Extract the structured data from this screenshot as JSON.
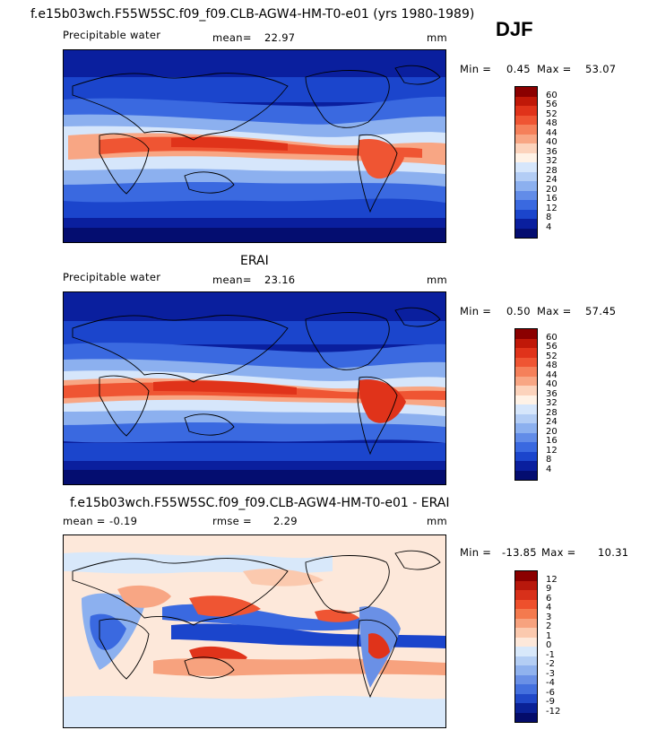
{
  "header": {
    "title": "f.e15b03wch.F55W5SC.f09_f09.CLB-AGW4-HM-T0-e01 (yrs 1980-1989)",
    "season": "DJF"
  },
  "panels": [
    {
      "id": "model",
      "heading": "",
      "variable": "Precipitable water",
      "mean_label": "mean=",
      "mean": "22.97",
      "units": "mm",
      "min_label": "Min =",
      "min": "0.45",
      "max_label": "Max =",
      "max": "53.07",
      "colorbar_levels": [
        "60",
        "56",
        "52",
        "48",
        "44",
        "40",
        "36",
        "32",
        "28",
        "24",
        "20",
        "16",
        "12",
        "8",
        "4"
      ],
      "colorbar_colors": [
        "#8b0000",
        "#c01808",
        "#e0331a",
        "#ef5533",
        "#f5805a",
        "#f8a684",
        "#fcd3bc",
        "#fff2e6",
        "#d6e6fb",
        "#b3cdf5",
        "#8cb0ef",
        "#628ce8",
        "#3a69e0",
        "#1b45cc",
        "#0a1f9e",
        "#040d70"
      ]
    },
    {
      "id": "obs",
      "heading": "ERAI",
      "variable": "Precipitable water",
      "mean_label": "mean=",
      "mean": "23.16",
      "units": "mm",
      "min_label": "Min =",
      "min": "0.50",
      "max_label": "Max =",
      "max": "57.45",
      "colorbar_levels": [
        "60",
        "56",
        "52",
        "48",
        "44",
        "40",
        "36",
        "32",
        "28",
        "24",
        "20",
        "16",
        "12",
        "8",
        "4"
      ],
      "colorbar_colors": [
        "#8b0000",
        "#c01808",
        "#e0331a",
        "#ef5533",
        "#f5805a",
        "#f8a684",
        "#fcd3bc",
        "#fff2e6",
        "#d6e6fb",
        "#b3cdf5",
        "#8cb0ef",
        "#628ce8",
        "#3a69e0",
        "#1b45cc",
        "#0a1f9e",
        "#040d70"
      ]
    },
    {
      "id": "diff",
      "heading": "f.e15b03wch.F55W5SC.f09_f09.CLB-AGW4-HM-T0-e01 - ERAI",
      "variable": "",
      "mean_label": "mean =",
      "mean": "-0.19",
      "rmse_label": "rmse =",
      "rmse": "2.29",
      "units": "mm",
      "min_label": "Min =",
      "min": "-13.85",
      "max_label": "Max =",
      "max": "10.31",
      "colorbar_levels": [
        "12",
        "9",
        "6",
        "4",
        "3",
        "2",
        "1",
        "0",
        "-1",
        "-2",
        "-3",
        "-4",
        "-6",
        "-9",
        "-12"
      ],
      "colorbar_colors": [
        "#8b0000",
        "#b8180c",
        "#d8301a",
        "#ee502c",
        "#f47a4e",
        "#f7a27e",
        "#fbc9ae",
        "#fde8da",
        "#d8e8fa",
        "#b4cef4",
        "#90b2ee",
        "#6a90e6",
        "#4470de",
        "#2048c8",
        "#0a2196",
        "#040c6a"
      ]
    }
  ],
  "map_colors": {
    "pw_deep_blue": "#0a1f9e",
    "pw_blue": "#1b45cc",
    "pw_mid_blue": "#3a69e0",
    "pw_light_blue": "#8cb0ef",
    "pw_pale": "#d6e6fb",
    "pw_peach": "#f8a684",
    "pw_orange": "#ef5533",
    "pw_red": "#e0331a",
    "diff_bg": "#fde8da",
    "diff_light_blue": "#d8e8fa"
  }
}
